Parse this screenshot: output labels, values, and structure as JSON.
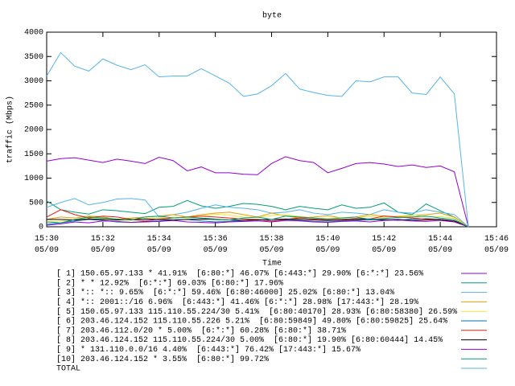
{
  "chart_data": {
    "type": "line",
    "title": "byte",
    "x_label": "Time",
    "y_label": "traffic (Mbps)",
    "x": [
      "15:30:00",
      "15:30:30",
      "15:31:00",
      "15:31:30",
      "15:32:00",
      "15:32:30",
      "15:33:00",
      "15:33:30",
      "15:34:00",
      "15:34:30",
      "15:35:00",
      "15:35:30",
      "15:36:00",
      "15:36:30",
      "15:37:00",
      "15:37:30",
      "15:38:00",
      "15:38:30",
      "15:39:00",
      "15:39:30",
      "15:40:00",
      "15:40:30",
      "15:41:00",
      "15:41:30",
      "15:42:00",
      "15:42:30",
      "15:43:00",
      "15:43:30",
      "15:44:00",
      "15:44:30",
      "15:45:00"
    ],
    "xlim": [
      "15:30:00",
      "15:46:00"
    ],
    "xticks": [
      {
        "value": "15:30:00",
        "label": "15:30 05/09"
      },
      {
        "value": "15:32:00",
        "label": "15:32 05/09"
      },
      {
        "value": "15:34:00",
        "label": "15:34 05/09"
      },
      {
        "value": "15:36:00",
        "label": "15:36 05/09"
      },
      {
        "value": "15:38:00",
        "label": "15:38 05/09"
      },
      {
        "value": "15:40:00",
        "label": "15:40 05/09"
      },
      {
        "value": "15:42:00",
        "label": "15:42 05/09"
      },
      {
        "value": "15:44:00",
        "label": "15:44 05/09"
      },
      {
        "value": "15:46:00",
        "label": "15:46 05/09"
      }
    ],
    "ylim": [
      0,
      4000
    ],
    "yticks": [
      0,
      500,
      1000,
      1500,
      2000,
      2500,
      3000,
      3500,
      4000
    ],
    "series": [
      {
        "name": "[ 1] 150.65.97.133 * 41.91%  [6:80:*] 46.07% [6:443:*] 29.90% [6:*:*] 23.56%",
        "color": "#9400d3",
        "values": [
          1350,
          1400,
          1420,
          1370,
          1320,
          1390,
          1350,
          1300,
          1430,
          1360,
          1150,
          1230,
          1110,
          1110,
          1080,
          1070,
          1300,
          1440,
          1360,
          1320,
          1110,
          1200,
          1300,
          1320,
          1290,
          1240,
          1270,
          1220,
          1250,
          1130,
          0
        ]
      },
      {
        "name": "[ 2] * * 12.92%  [6:*:*] 69.03% [6:80:*] 17.96%",
        "color": "#009e73",
        "values": [
          530,
          350,
          300,
          260,
          350,
          330,
          300,
          270,
          400,
          420,
          540,
          430,
          380,
          420,
          480,
          460,
          420,
          350,
          420,
          380,
          350,
          450,
          380,
          400,
          490,
          300,
          250,
          470,
          330,
          200,
          0
        ]
      },
      {
        "name": "[ 3] *:: *:: 9.65%  [6:*:*] 59.46% [6:80:46000] 25.02% [6:80:*] 13.04%",
        "color": "#56b4e9",
        "values": [
          400,
          500,
          580,
          450,
          500,
          570,
          580,
          550,
          200,
          250,
          300,
          380,
          450,
          400,
          380,
          350,
          280,
          300,
          350,
          280,
          250,
          300,
          280,
          250,
          350,
          300,
          280,
          350,
          300,
          250,
          0
        ]
      },
      {
        "name": "[ 4] *:: 2001::/16 6.96%  [6:443:*] 41.46% [6:*:*] 28.98% [17:443:*] 28.19%",
        "color": "#e69f00",
        "values": [
          150,
          200,
          180,
          220,
          200,
          150,
          180,
          200,
          220,
          250,
          200,
          250,
          280,
          300,
          250,
          200,
          280,
          220,
          180,
          200,
          230,
          180,
          200,
          250,
          220,
          200,
          230,
          250,
          280,
          200,
          0
        ]
      },
      {
        "name": "[ 5] 150.65.97.133 115.110.55.224/30 5.41%  [6:80:40170] 28.93% [6:80:58380] 26.59%",
        "color": "#f0e442",
        "values": [
          100,
          120,
          150,
          180,
          160,
          140,
          130,
          170,
          190,
          200,
          180,
          220,
          260,
          240,
          200,
          190,
          230,
          250,
          210,
          180,
          170,
          190,
          200,
          210,
          190,
          220,
          240,
          200,
          210,
          180,
          0
        ]
      },
      {
        "name": "[ 6] 203.46.124.152 115.110.55.226 5.21%  [6:80:59849] 49.80% [6:80:59825] 25.64%",
        "color": "#0072b2",
        "values": [
          50,
          80,
          120,
          150,
          130,
          100,
          90,
          110,
          120,
          140,
          150,
          120,
          100,
          110,
          130,
          150,
          120,
          140,
          130,
          110,
          100,
          120,
          130,
          140,
          150,
          130,
          160,
          170,
          150,
          120,
          0
        ]
      },
      {
        "name": "[ 7] 203.46.112.0/20 * 5.00%  [6:*:*] 60.28% [6:80:*] 38.71%",
        "color": "#e51e10",
        "values": [
          200,
          350,
          250,
          180,
          220,
          200,
          150,
          120,
          160,
          180,
          200,
          220,
          200,
          180,
          160,
          150,
          120,
          150,
          180,
          160,
          140,
          150,
          170,
          160,
          220,
          200,
          180,
          160,
          150,
          100,
          0
        ]
      },
      {
        "name": "[ 8] 203.46.124.152 115.110.55.224/30 5.00%  [6:80:*] 19.90% [6:80:60444] 14.45%",
        "color": "#000000",
        "values": [
          150,
          150,
          140,
          160,
          150,
          140,
          150,
          160,
          150,
          140,
          150,
          160,
          150,
          140,
          130,
          140,
          150,
          160,
          150,
          140,
          130,
          140,
          150,
          160,
          140,
          150,
          130,
          140,
          150,
          120,
          0
        ]
      },
      {
        "name": "[ 9] * 131.110.0.0/16 4.40%  [6:443:*] 76.42% [17:443:*] 15.67%",
        "color": "#9400d3",
        "values": [
          30,
          60,
          100,
          80,
          120,
          110,
          90,
          100,
          110,
          130,
          100,
          90,
          80,
          100,
          110,
          120,
          100,
          130,
          120,
          100,
          90,
          110,
          120,
          100,
          130,
          140,
          120,
          110,
          130,
          100,
          0
        ]
      },
      {
        "name": "[10] 203.46.124.152 * 3.55%  [6:80:*] 99.72%",
        "color": "#009e73",
        "values": [
          100,
          80,
          150,
          200,
          180,
          160,
          140,
          200,
          220,
          180,
          200,
          180,
          160,
          140,
          180,
          200,
          150,
          220,
          200,
          180,
          160,
          180,
          200,
          150,
          170,
          190,
          200,
          220,
          180,
          150,
          0
        ]
      },
      {
        "name": "TOTAL",
        "color": "#56b4e9",
        "values": [
          3100,
          3580,
          3300,
          3200,
          3450,
          3320,
          3230,
          3330,
          3080,
          3100,
          3100,
          3250,
          3100,
          2950,
          2680,
          2730,
          2900,
          3150,
          2830,
          2760,
          2700,
          2680,
          3000,
          2980,
          3080,
          3080,
          2750,
          2720,
          3080,
          2730,
          0
        ]
      }
    ]
  }
}
